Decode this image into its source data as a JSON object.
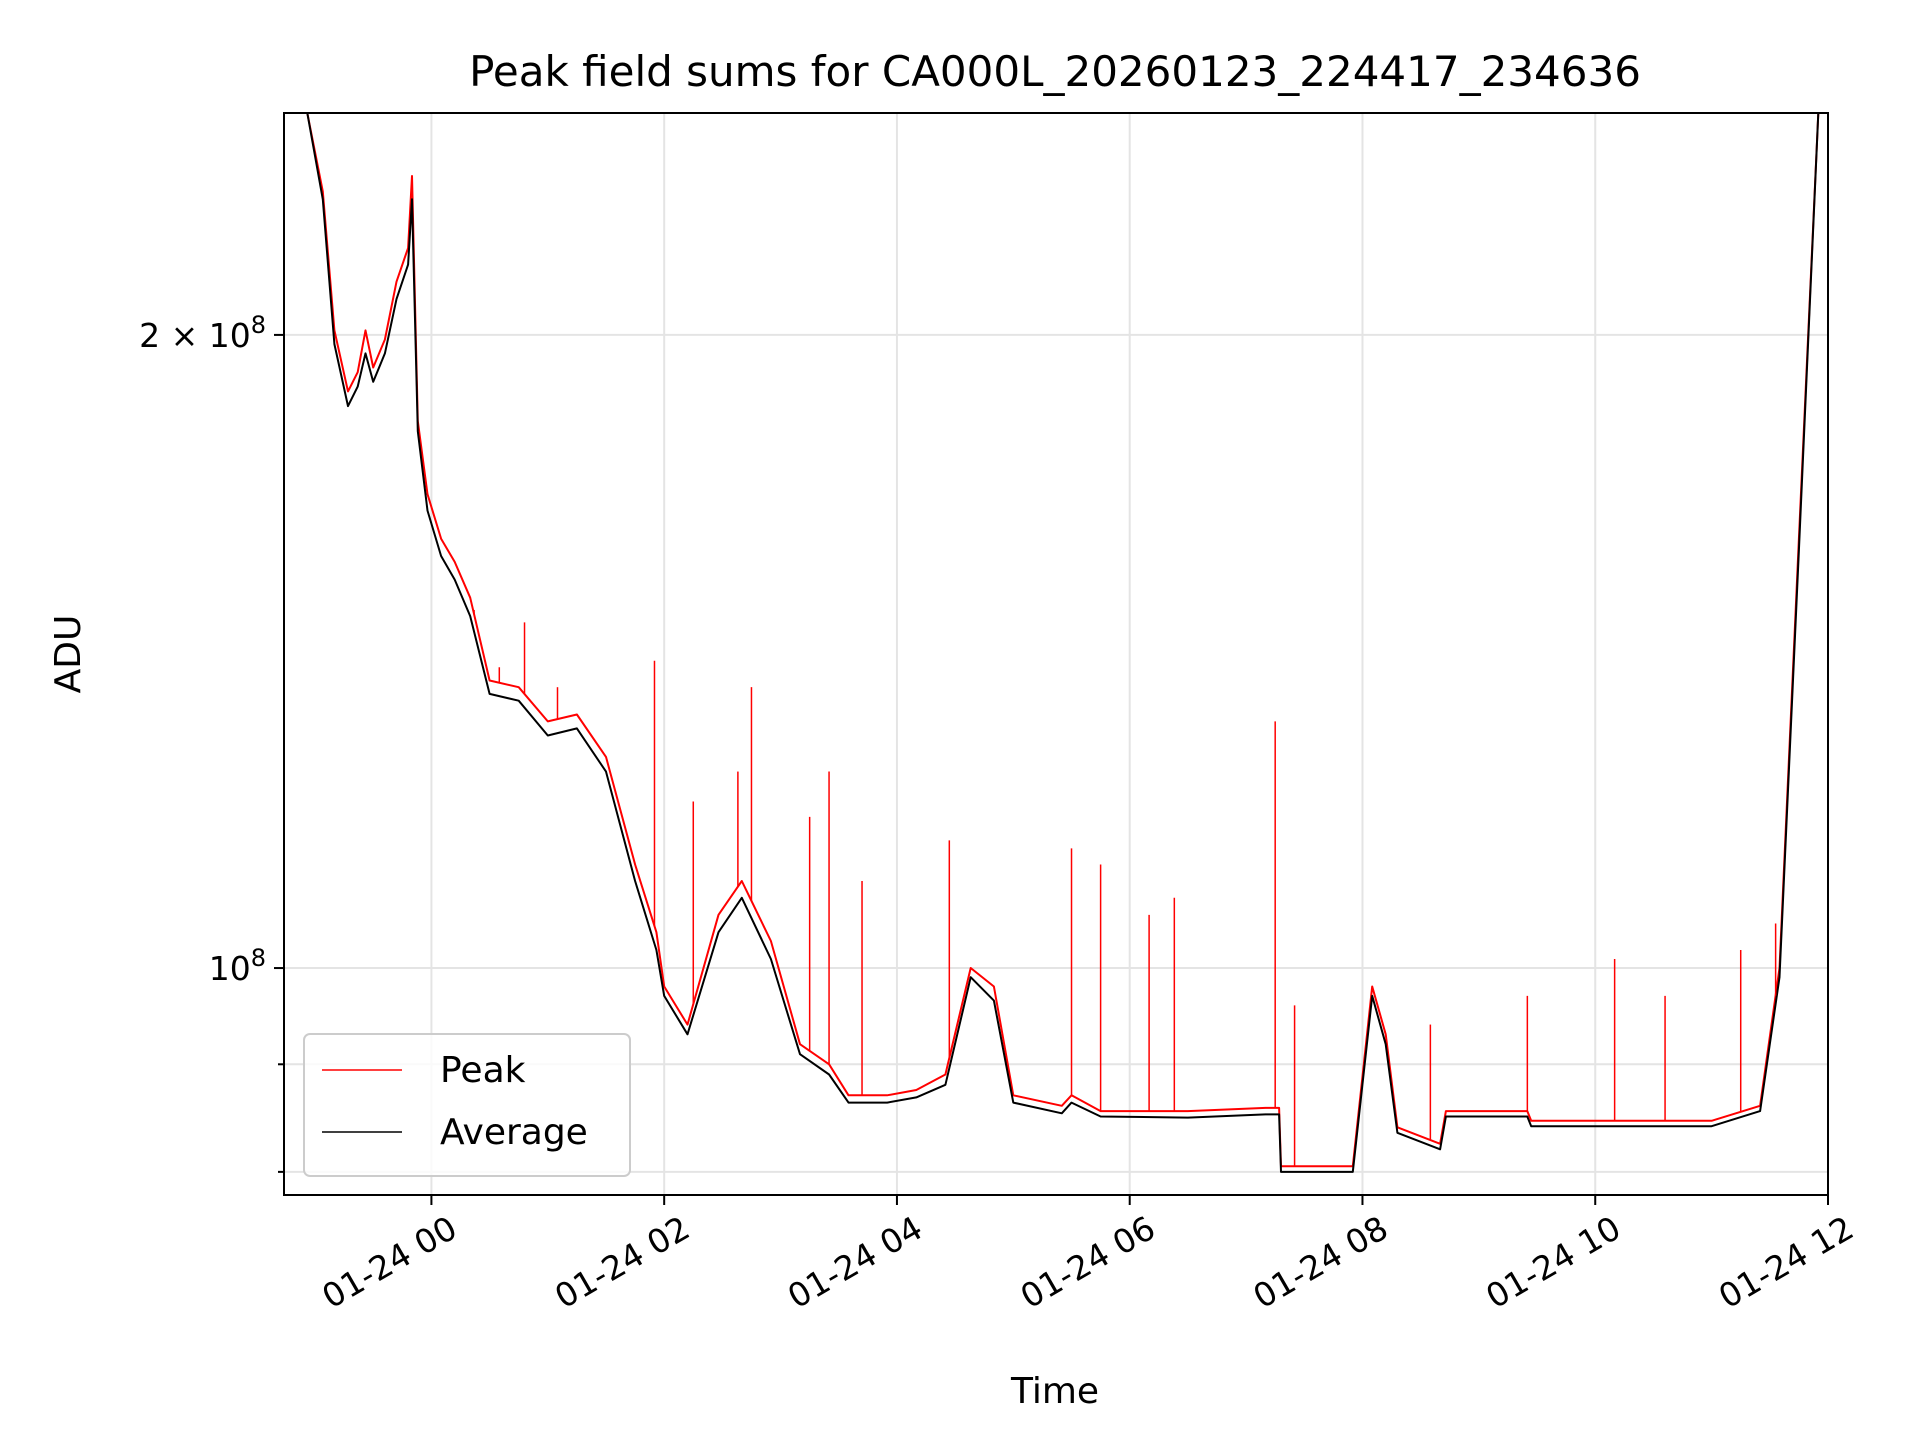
{
  "chart_data": {
    "type": "line",
    "title": "Peak field sums for CA000L_20260123_224417_234636",
    "xlabel": "Time",
    "ylabel": "ADU",
    "y_scale": "log",
    "grid": true,
    "legend_position": "lower-left",
    "xlim": [
      "2026-01-23 22:44",
      "2026-01-24 12:00"
    ],
    "ylim": [
      78000000,
      255000000
    ],
    "x_ticks": [
      {
        "value": "2026-01-24 00:00",
        "label": "01-24 00"
      },
      {
        "value": "2026-01-24 02:00",
        "label": "01-24 02"
      },
      {
        "value": "2026-01-24 04:00",
        "label": "01-24 04"
      },
      {
        "value": "2026-01-24 06:00",
        "label": "01-24 06"
      },
      {
        "value": "2026-01-24 08:00",
        "label": "01-24 08"
      },
      {
        "value": "2026-01-24 10:00",
        "label": "01-24 10"
      },
      {
        "value": "2026-01-24 12:00",
        "label": "01-24 12"
      }
    ],
    "y_ticks": [
      {
        "value": 100000000,
        "label_base": "10",
        "label_exp": "8",
        "label_prefix": ""
      },
      {
        "value": 200000000,
        "label_base": "10",
        "label_exp": "8",
        "label_prefix": "2 × "
      }
    ],
    "series": [
      {
        "name": "Peak",
        "color": "#ff0000",
        "points": [
          [
            "2026-01-23 22:44",
            255000000
          ],
          [
            "2026-01-23 22:56",
            255000000
          ],
          [
            "2026-01-23 23:04",
            234000000
          ],
          [
            "2026-01-23 23:10",
            201000000
          ],
          [
            "2026-01-23 23:17",
            188000000
          ],
          [
            "2026-01-23 23:22",
            192000000
          ],
          [
            "2026-01-23 23:26",
            201000000
          ],
          [
            "2026-01-23 23:30",
            193000000
          ],
          [
            "2026-01-23 23:36",
            199000000
          ],
          [
            "2026-01-23 23:42",
            212000000
          ],
          [
            "2026-01-23 23:48",
            220000000
          ],
          [
            "2026-01-23 23:50",
            238000000
          ],
          [
            "2026-01-23 23:53",
            182000000
          ],
          [
            "2026-01-23 23:58",
            168000000
          ],
          [
            "2026-01-24 00:05",
            160000000
          ],
          [
            "2026-01-24 00:12",
            156000000
          ],
          [
            "2026-01-24 00:20",
            150000000
          ],
          [
            "2026-01-24 00:30",
            137000000
          ],
          [
            "2026-01-24 00:45",
            136000000
          ],
          [
            "2026-01-24 01:00",
            131000000
          ],
          [
            "2026-01-24 01:15",
            132000000
          ],
          [
            "2026-01-24 01:30",
            126000000
          ],
          [
            "2026-01-24 01:45",
            112000000
          ],
          [
            "2026-01-24 01:56",
            104000000
          ],
          [
            "2026-01-24 02:00",
            98000000
          ],
          [
            "2026-01-24 02:12",
            94000000
          ],
          [
            "2026-01-24 02:28",
            106000000
          ],
          [
            "2026-01-24 02:40",
            110000000
          ],
          [
            "2026-01-24 02:55",
            103000000
          ],
          [
            "2026-01-24 03:10",
            92000000
          ],
          [
            "2026-01-24 03:25",
            90000000
          ],
          [
            "2026-01-24 03:35",
            87000000
          ],
          [
            "2026-01-24 03:55",
            87000000
          ],
          [
            "2026-01-24 04:10",
            87500000
          ],
          [
            "2026-01-24 04:25",
            89000000
          ],
          [
            "2026-01-24 04:38",
            100000000
          ],
          [
            "2026-01-24 04:50",
            98000000
          ],
          [
            "2026-01-24 05:00",
            87000000
          ],
          [
            "2026-01-24 05:25",
            86000000
          ],
          [
            "2026-01-24 05:30",
            87000000
          ],
          [
            "2026-01-24 05:45",
            85500000
          ],
          [
            "2026-01-24 06:30",
            85500000
          ],
          [
            "2026-01-24 07:10",
            85800000
          ],
          [
            "2026-01-24 07:17",
            85800000
          ],
          [
            "2026-01-24 07:18",
            80500000
          ],
          [
            "2026-01-24 07:55",
            80500000
          ],
          [
            "2026-01-24 08:05",
            98000000
          ],
          [
            "2026-01-24 08:12",
            93000000
          ],
          [
            "2026-01-24 08:18",
            84000000
          ],
          [
            "2026-01-24 08:40",
            82500000
          ],
          [
            "2026-01-24 08:43",
            85500000
          ],
          [
            "2026-01-24 09:25",
            85500000
          ],
          [
            "2026-01-24 09:27",
            84600000
          ],
          [
            "2026-01-24 11:00",
            84600000
          ],
          [
            "2026-01-24 11:25",
            86000000
          ],
          [
            "2026-01-24 11:35",
            100000000
          ],
          [
            "2026-01-24 11:45",
            160000000
          ],
          [
            "2026-01-24 11:55",
            255000000
          ]
        ]
      },
      {
        "name": "Average",
        "color": "#000000",
        "points": [
          [
            "2026-01-23 22:44",
            255000000
          ],
          [
            "2026-01-23 22:56",
            255000000
          ],
          [
            "2026-01-23 23:04",
            232000000
          ],
          [
            "2026-01-23 23:10",
            198000000
          ],
          [
            "2026-01-23 23:17",
            185000000
          ],
          [
            "2026-01-23 23:22",
            189000000
          ],
          [
            "2026-01-23 23:26",
            196000000
          ],
          [
            "2026-01-23 23:30",
            190000000
          ],
          [
            "2026-01-23 23:36",
            196000000
          ],
          [
            "2026-01-23 23:42",
            208000000
          ],
          [
            "2026-01-23 23:48",
            216000000
          ],
          [
            "2026-01-23 23:50",
            232000000
          ],
          [
            "2026-01-23 23:53",
            180000000
          ],
          [
            "2026-01-23 23:58",
            165000000
          ],
          [
            "2026-01-24 00:05",
            157000000
          ],
          [
            "2026-01-24 00:12",
            153000000
          ],
          [
            "2026-01-24 00:20",
            147000000
          ],
          [
            "2026-01-24 00:30",
            135000000
          ],
          [
            "2026-01-24 00:45",
            134000000
          ],
          [
            "2026-01-24 01:00",
            129000000
          ],
          [
            "2026-01-24 01:15",
            130000000
          ],
          [
            "2026-01-24 01:30",
            124000000
          ],
          [
            "2026-01-24 01:45",
            110000000
          ],
          [
            "2026-01-24 01:56",
            102000000
          ],
          [
            "2026-01-24 02:00",
            97000000
          ],
          [
            "2026-01-24 02:12",
            93000000
          ],
          [
            "2026-01-24 02:28",
            104000000
          ],
          [
            "2026-01-24 02:40",
            108000000
          ],
          [
            "2026-01-24 02:55",
            101000000
          ],
          [
            "2026-01-24 03:10",
            91000000
          ],
          [
            "2026-01-24 03:25",
            89000000
          ],
          [
            "2026-01-24 03:35",
            86300000
          ],
          [
            "2026-01-24 03:55",
            86300000
          ],
          [
            "2026-01-24 04:10",
            86800000
          ],
          [
            "2026-01-24 04:25",
            88000000
          ],
          [
            "2026-01-24 04:38",
            99000000
          ],
          [
            "2026-01-24 04:50",
            96500000
          ],
          [
            "2026-01-24 05:00",
            86300000
          ],
          [
            "2026-01-24 05:25",
            85300000
          ],
          [
            "2026-01-24 05:30",
            86300000
          ],
          [
            "2026-01-24 05:45",
            85000000
          ],
          [
            "2026-01-24 06:30",
            84900000
          ],
          [
            "2026-01-24 07:10",
            85200000
          ],
          [
            "2026-01-24 07:17",
            85200000
          ],
          [
            "2026-01-24 07:18",
            80000000
          ],
          [
            "2026-01-24 07:55",
            80000000
          ],
          [
            "2026-01-24 08:05",
            97000000
          ],
          [
            "2026-01-24 08:12",
            92000000
          ],
          [
            "2026-01-24 08:18",
            83500000
          ],
          [
            "2026-01-24 08:40",
            82000000
          ],
          [
            "2026-01-24 08:43",
            85000000
          ],
          [
            "2026-01-24 09:25",
            85000000
          ],
          [
            "2026-01-24 09:27",
            84100000
          ],
          [
            "2026-01-24 11:00",
            84100000
          ],
          [
            "2026-01-24 11:25",
            85500000
          ],
          [
            "2026-01-24 11:35",
            99000000
          ],
          [
            "2026-01-24 11:45",
            158000000
          ],
          [
            "2026-01-24 11:55",
            255000000
          ]
        ],
        "spikes": []
      }
    ],
    "peak_spikes": [
      [
        "2026-01-24 00:22",
        148000000
      ],
      [
        "2026-01-24 00:35",
        139000000
      ],
      [
        "2026-01-24 00:48",
        146000000
      ],
      [
        "2026-01-24 01:05",
        136000000
      ],
      [
        "2026-01-24 01:55",
        140000000
      ],
      [
        "2026-01-24 02:15",
        120000000
      ],
      [
        "2026-01-24 02:38",
        124000000
      ],
      [
        "2026-01-24 02:45",
        136000000
      ],
      [
        "2026-01-24 03:15",
        118000000
      ],
      [
        "2026-01-24 03:25",
        124000000
      ],
      [
        "2026-01-24 03:42",
        110000000
      ],
      [
        "2026-01-24 04:27",
        115000000
      ],
      [
        "2026-01-24 05:30",
        114000000
      ],
      [
        "2026-01-24 05:45",
        112000000
      ],
      [
        "2026-01-24 06:10",
        106000000
      ],
      [
        "2026-01-24 06:23",
        108000000
      ],
      [
        "2026-01-24 07:15",
        131000000
      ],
      [
        "2026-01-24 07:25",
        96000000
      ],
      [
        "2026-01-24 08:35",
        94000000
      ],
      [
        "2026-01-24 09:25",
        97000000
      ],
      [
        "2026-01-24 10:10",
        101000000
      ],
      [
        "2026-01-24 10:36",
        97000000
      ],
      [
        "2026-01-24 11:15",
        102000000
      ],
      [
        "2026-01-24 11:33",
        105000000
      ]
    ]
  }
}
